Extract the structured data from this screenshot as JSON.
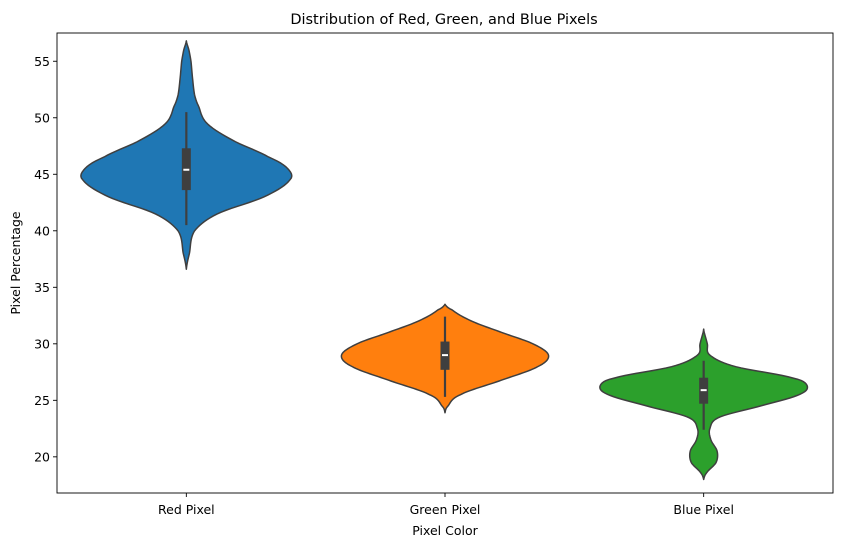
{
  "chart_data": {
    "type": "violin",
    "title": "Distribution of Red, Green, and Blue Pixels",
    "xlabel": "Pixel Color",
    "ylabel": "Pixel Percentage",
    "ylim": [
      16.8,
      57.5
    ],
    "yticks": [
      20,
      25,
      30,
      35,
      40,
      45,
      50,
      55
    ],
    "categories": [
      "Red Pixel",
      "Green Pixel",
      "Blue Pixel"
    ],
    "grid": false,
    "series": [
      {
        "category": "Red Pixel",
        "color": "#1f77b4",
        "range": [
          36.6,
          56.8
        ],
        "q1": 43.6,
        "median": 45.4,
        "q3": 47.3,
        "whisker_low": 40.5,
        "whisker_high": 50.5,
        "profile": [
          [
            36.6,
            0.0
          ],
          [
            38,
            0.03
          ],
          [
            40,
            0.08
          ],
          [
            41.5,
            0.3
          ],
          [
            43,
            0.75
          ],
          [
            44.5,
            1.0
          ],
          [
            45.5,
            0.98
          ],
          [
            46.5,
            0.8
          ],
          [
            48,
            0.45
          ],
          [
            49.5,
            0.2
          ],
          [
            51,
            0.12
          ],
          [
            52,
            0.08
          ],
          [
            53.5,
            0.06
          ],
          [
            55,
            0.045
          ],
          [
            56,
            0.025
          ],
          [
            56.8,
            0.0
          ]
        ]
      },
      {
        "category": "Green Pixel",
        "color": "#ff7f0e",
        "range": [
          23.9,
          33.5
        ],
        "q1": 27.7,
        "median": 29.0,
        "q3": 30.2,
        "whisker_low": 25.3,
        "whisker_high": 32.4,
        "profile": [
          [
            23.9,
            0.0
          ],
          [
            24.5,
            0.03
          ],
          [
            25.5,
            0.15
          ],
          [
            26.8,
            0.55
          ],
          [
            28,
            0.9
          ],
          [
            29,
            1.0
          ],
          [
            30,
            0.85
          ],
          [
            31,
            0.55
          ],
          [
            32,
            0.26
          ],
          [
            33,
            0.07
          ],
          [
            33.5,
            0.0
          ]
        ]
      },
      {
        "category": "Blue Pixel",
        "color": "#2ca02c",
        "range": [
          18.0,
          31.3
        ],
        "q1": 24.7,
        "median": 25.9,
        "q3": 27.0,
        "whisker_low": 22.4,
        "whisker_high": 28.5,
        "profile": [
          [
            18.0,
            0.0
          ],
          [
            18.6,
            0.03
          ],
          [
            19.5,
            0.12
          ],
          [
            20.5,
            0.13
          ],
          [
            21.5,
            0.07
          ],
          [
            22.5,
            0.06
          ],
          [
            23.5,
            0.15
          ],
          [
            24.5,
            0.55
          ],
          [
            25.5,
            0.92
          ],
          [
            26.3,
            1.0
          ],
          [
            27,
            0.85
          ],
          [
            28,
            0.3
          ],
          [
            29,
            0.06
          ],
          [
            30,
            0.035
          ],
          [
            31.3,
            0.0
          ]
        ]
      }
    ]
  },
  "colors": {
    "outline": "#3f3f3f",
    "box": "#3f3f3f",
    "median": "#ffffff"
  }
}
